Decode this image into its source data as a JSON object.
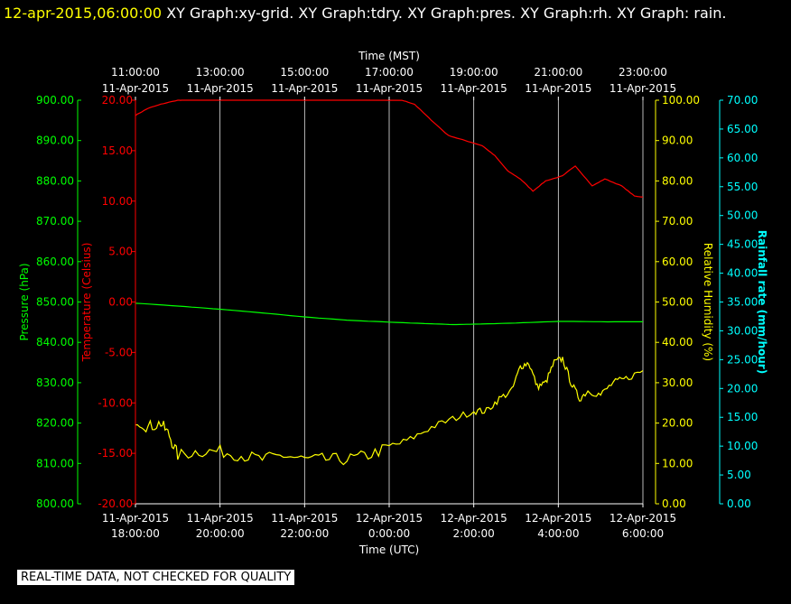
{
  "header": {
    "timestamp": "12-apr-2015,06:00:00",
    "graphs": "XY Graph:xy-grid.  XY Graph:tdry.  XY Graph:pres.  XY Graph:rh.  XY Graph: rain."
  },
  "footer": {
    "notice": "REAL-TIME DATA, NOT CHECKED FOR QUALITY"
  },
  "colors": {
    "background": "#000000",
    "grid": "#ffffff",
    "temperature": "#ff0000",
    "pressure": "#00ff00",
    "humidity": "#ffff00",
    "rainfall": "#00ffff"
  },
  "chart_data": {
    "type": "line",
    "grid": true,
    "x_top": {
      "label": "Time (MST)",
      "ticks": [
        [
          "11:00:00",
          "11-Apr-2015"
        ],
        [
          "13:00:00",
          "11-Apr-2015"
        ],
        [
          "15:00:00",
          "11-Apr-2015"
        ],
        [
          "17:00:00",
          "11-Apr-2015"
        ],
        [
          "19:00:00",
          "11-Apr-2015"
        ],
        [
          "21:00:00",
          "11-Apr-2015"
        ],
        [
          "23:00:00",
          "11-Apr-2015"
        ]
      ]
    },
    "x_bottom": {
      "label": "Time (UTC)",
      "ticks": [
        [
          "11-Apr-2015",
          "18:00:00"
        ],
        [
          "11-Apr-2015",
          "20:00:00"
        ],
        [
          "11-Apr-2015",
          "22:00:00"
        ],
        [
          "12-Apr-2015",
          "0:00:00"
        ],
        [
          "12-Apr-2015",
          "2:00:00"
        ],
        [
          "12-Apr-2015",
          "4:00:00"
        ],
        [
          "12-Apr-2015",
          "6:00:00"
        ]
      ]
    },
    "x_range_hours": [
      0,
      12
    ],
    "axes": {
      "pressure": {
        "label": "Pressure (hPa)",
        "ylim": [
          800,
          900
        ],
        "ticks": [
          "800.00",
          "810.00",
          "820.00",
          "830.00",
          "840.00",
          "850.00",
          "860.00",
          "870.00",
          "880.00",
          "890.00",
          "900.00"
        ]
      },
      "temperature": {
        "label": "Temperature (Celsius)",
        "ylim": [
          -20,
          20
        ],
        "ticks": [
          "-20.00",
          "-15.00",
          "-10.00",
          "-5.00",
          "0.00",
          "5.00",
          "10.00",
          "15.00",
          "20.00"
        ]
      },
      "humidity": {
        "label": "Relative Humidity (%)",
        "ylim": [
          0,
          100
        ],
        "ticks": [
          "0.00",
          "10.00",
          "20.00",
          "30.00",
          "40.00",
          "50.00",
          "60.00",
          "70.00",
          "80.00",
          "90.00",
          "100.00"
        ]
      },
      "rainfall": {
        "label": "Rainfall rate (mm/hour)",
        "ylim": [
          0,
          70
        ],
        "ticks": [
          "0.00",
          "5.00",
          "10.00",
          "15.00",
          "20.00",
          "25.00",
          "30.00",
          "35.00",
          "40.00",
          "45.00",
          "50.00",
          "55.00",
          "60.00",
          "65.00",
          "70.00"
        ]
      }
    },
    "series": [
      {
        "name": "tdry",
        "axis": "temperature",
        "x": [
          0,
          0.3,
          0.6,
          1,
          1.1,
          6.3,
          6.6,
          7.0,
          7.4,
          7.8,
          8.2,
          8.5,
          8.8,
          9.1,
          9.4,
          9.7,
          10.1,
          10.4,
          10.8,
          11.1,
          11.5,
          11.8,
          12
        ],
        "y": [
          18.5,
          19.2,
          19.6,
          20.0,
          20.0,
          20.0,
          19.6,
          18.0,
          16.5,
          16.0,
          15.5,
          14.5,
          13.0,
          12.2,
          11.0,
          12.0,
          12.5,
          13.5,
          11.5,
          12.2,
          11.5,
          10.5,
          10.4
        ]
      },
      {
        "name": "pres",
        "axis": "pressure",
        "x": [
          0,
          1,
          2,
          3,
          4,
          5,
          6,
          7,
          7.5,
          8,
          9,
          10,
          11,
          12
        ],
        "y": [
          849.7,
          849.0,
          848.2,
          847.3,
          846.3,
          845.5,
          845.0,
          844.6,
          844.4,
          844.5,
          844.8,
          845.2,
          845.1,
          845.1
        ]
      },
      {
        "name": "rh",
        "axis": "humidity",
        "x": [
          0,
          0.3,
          0.6,
          0.8,
          1,
          1.5,
          2,
          2.5,
          3,
          3.5,
          4,
          4.5,
          5,
          5.5,
          6,
          6.5,
          7,
          7.5,
          8,
          8.3,
          8.6,
          8.9,
          9.1,
          9.3,
          9.5,
          9.7,
          9.9,
          10.1,
          10.3,
          10.5,
          10.7,
          11,
          11.3,
          11.6,
          12
        ],
        "y": [
          21,
          19,
          20,
          17,
          12,
          13,
          13,
          12,
          11,
          12,
          11,
          11,
          11,
          12,
          14,
          16,
          19,
          21,
          23,
          23,
          26,
          28,
          34,
          35,
          29,
          30,
          35,
          36,
          30,
          26,
          28,
          27,
          30,
          31,
          33
        ]
      },
      {
        "name": "rain",
        "axis": "rainfall",
        "x": [],
        "y": []
      }
    ]
  }
}
